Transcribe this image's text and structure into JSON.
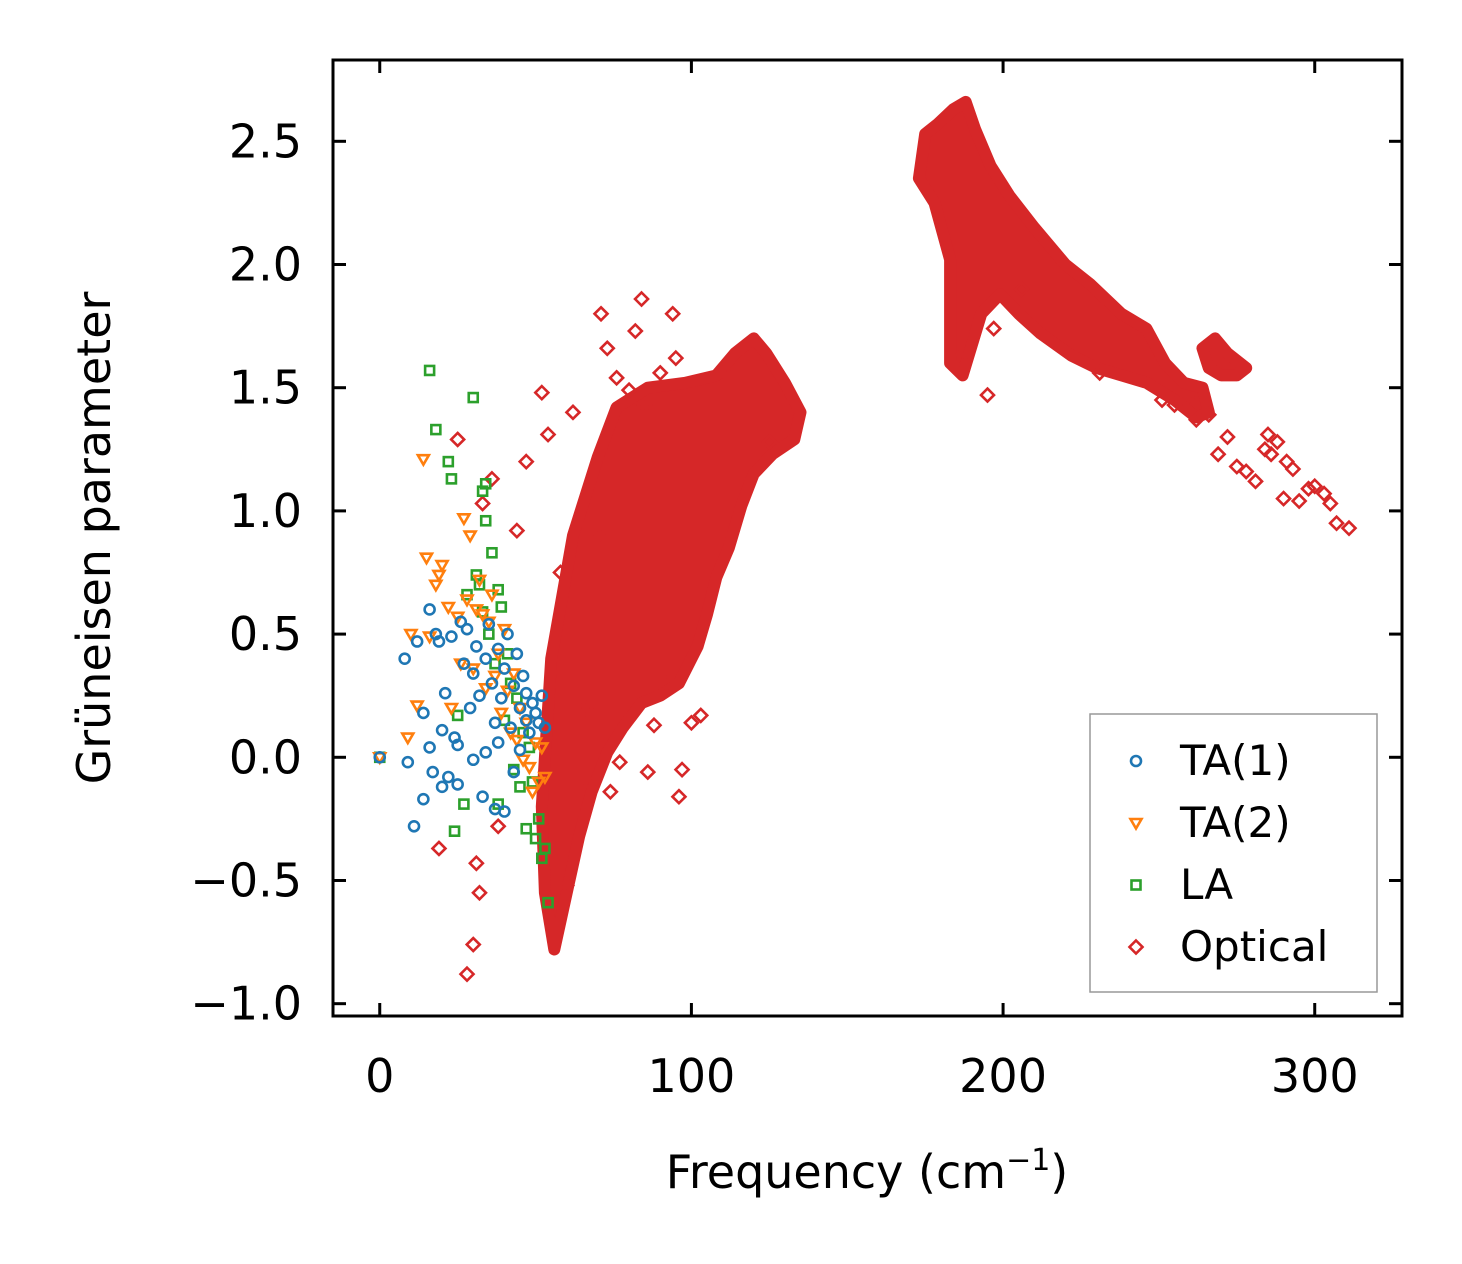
{
  "chart_data": {
    "type": "scatter",
    "xlabel": "Frequency (cm",
    "xlabel_sup": "−1",
    "xlabel_close": ")",
    "ylabel": "Grüneisen parameter",
    "xlim": [
      -15,
      328
    ],
    "ylim": [
      -1.05,
      2.83
    ],
    "xticks": [
      0,
      100,
      200,
      300
    ],
    "xtick_labels": [
      "0",
      "100",
      "200",
      "300"
    ],
    "yticks": [
      -1.0,
      -0.5,
      0.0,
      0.5,
      1.0,
      1.5,
      2.0,
      2.5
    ],
    "ytick_labels": [
      "−1.0",
      "−0.5",
      "0.0",
      "0.5",
      "1.0",
      "1.5",
      "2.0",
      "2.5"
    ],
    "legend_position": "lower-right",
    "series": [
      {
        "name": "TA(1)",
        "marker": "circle",
        "color": "#1f77b4",
        "points": [
          [
            0,
            0.0
          ],
          [
            8,
            0.4
          ],
          [
            9,
            -0.02
          ],
          [
            11,
            -0.28
          ],
          [
            12,
            0.47
          ],
          [
            14,
            0.18
          ],
          [
            14,
            -0.17
          ],
          [
            16,
            0.6
          ],
          [
            16,
            0.04
          ],
          [
            17,
            -0.06
          ],
          [
            18,
            0.5
          ],
          [
            19,
            0.47
          ],
          [
            20,
            0.11
          ],
          [
            20,
            -0.12
          ],
          [
            21,
            0.26
          ],
          [
            22,
            -0.08
          ],
          [
            23,
            0.49
          ],
          [
            24,
            0.08
          ],
          [
            25,
            0.05
          ],
          [
            25,
            -0.11
          ],
          [
            26,
            0.55
          ],
          [
            27,
            0.38
          ],
          [
            28,
            0.52
          ],
          [
            29,
            0.2
          ],
          [
            30,
            0.34
          ],
          [
            30,
            -0.01
          ],
          [
            31,
            0.45
          ],
          [
            32,
            0.25
          ],
          [
            33,
            -0.16
          ],
          [
            34,
            0.4
          ],
          [
            34,
            0.02
          ],
          [
            35,
            0.54
          ],
          [
            36,
            0.3
          ],
          [
            37,
            0.14
          ],
          [
            37,
            -0.21
          ],
          [
            38,
            0.44
          ],
          [
            38,
            0.06
          ],
          [
            39,
            0.24
          ],
          [
            40,
            0.36
          ],
          [
            40,
            -0.22
          ],
          [
            41,
            0.5
          ],
          [
            42,
            0.12
          ],
          [
            43,
            0.29
          ],
          [
            43,
            -0.06
          ],
          [
            44,
            0.42
          ],
          [
            45,
            0.2
          ],
          [
            45,
            0.03
          ],
          [
            46,
            0.33
          ],
          [
            47,
            0.15
          ],
          [
            47,
            0.26
          ],
          [
            48,
            0.1
          ],
          [
            49,
            0.22
          ],
          [
            50,
            0.18
          ],
          [
            51,
            0.14
          ],
          [
            52,
            0.25
          ],
          [
            53,
            0.12
          ]
        ]
      },
      {
        "name": "TA(2)",
        "marker": "triangle-down",
        "color": "#ff7f0e",
        "points": [
          [
            0,
            0.0
          ],
          [
            9,
            0.08
          ],
          [
            10,
            0.5
          ],
          [
            12,
            0.21
          ],
          [
            14,
            1.21
          ],
          [
            15,
            0.81
          ],
          [
            16,
            0.49
          ],
          [
            18,
            0.7
          ],
          [
            19,
            0.74
          ],
          [
            20,
            0.78
          ],
          [
            22,
            0.61
          ],
          [
            23,
            0.2
          ],
          [
            25,
            0.57
          ],
          [
            26,
            0.38
          ],
          [
            27,
            0.97
          ],
          [
            28,
            0.64
          ],
          [
            29,
            0.9
          ],
          [
            30,
            0.36
          ],
          [
            31,
            0.6
          ],
          [
            32,
            0.72
          ],
          [
            33,
            0.58
          ],
          [
            34,
            0.28
          ],
          [
            35,
            0.55
          ],
          [
            36,
            0.66
          ],
          [
            37,
            0.33
          ],
          [
            38,
            0.42
          ],
          [
            39,
            0.18
          ],
          [
            40,
            0.52
          ],
          [
            41,
            0.27
          ],
          [
            42,
            0.1
          ],
          [
            43,
            0.34
          ],
          [
            44,
            0.07
          ],
          [
            45,
            0.2
          ],
          [
            46,
            -0.01
          ],
          [
            47,
            0.14
          ],
          [
            48,
            -0.04
          ],
          [
            49,
            -0.14
          ],
          [
            50,
            0.06
          ],
          [
            51,
            -0.1
          ],
          [
            52,
            0.04
          ],
          [
            53,
            -0.08
          ]
        ]
      },
      {
        "name": "LA",
        "marker": "square",
        "color": "#2ca02c",
        "points": [
          [
            0,
            0.0
          ],
          [
            16,
            1.57
          ],
          [
            18,
            1.33
          ],
          [
            22,
            1.2
          ],
          [
            23,
            1.13
          ],
          [
            24,
            -0.3
          ],
          [
            25,
            0.17
          ],
          [
            27,
            -0.19
          ],
          [
            28,
            0.66
          ],
          [
            30,
            1.46
          ],
          [
            31,
            0.74
          ],
          [
            32,
            0.7
          ],
          [
            33,
            0.59
          ],
          [
            33,
            1.08
          ],
          [
            34,
            0.96
          ],
          [
            34,
            1.11
          ],
          [
            35,
            0.5
          ],
          [
            36,
            0.83
          ],
          [
            37,
            0.38
          ],
          [
            38,
            0.68
          ],
          [
            38,
            -0.19
          ],
          [
            39,
            0.61
          ],
          [
            40,
            0.15
          ],
          [
            41,
            0.42
          ],
          [
            42,
            0.3
          ],
          [
            43,
            -0.05
          ],
          [
            44,
            0.24
          ],
          [
            45,
            -0.12
          ],
          [
            46,
            0.1
          ],
          [
            47,
            -0.29
          ],
          [
            48,
            0.04
          ],
          [
            49,
            -0.1
          ],
          [
            50,
            -0.33
          ],
          [
            51,
            -0.25
          ],
          [
            52,
            -0.41
          ],
          [
            53,
            -0.37
          ],
          [
            54,
            -0.59
          ]
        ]
      },
      {
        "name": "Optical",
        "marker": "diamond",
        "color": "#d62728",
        "outliers": [
          [
            19,
            -0.37
          ],
          [
            25,
            1.29
          ],
          [
            28,
            -0.88
          ],
          [
            30,
            -0.76
          ],
          [
            31,
            -0.43
          ],
          [
            32,
            -0.55
          ],
          [
            33,
            1.03
          ],
          [
            36,
            1.13
          ],
          [
            38,
            -0.28
          ],
          [
            44,
            0.92
          ],
          [
            47,
            1.2
          ],
          [
            52,
            1.48
          ],
          [
            54,
            1.31
          ],
          [
            58,
            0.75
          ],
          [
            60,
            -0.52
          ],
          [
            62,
            1.4
          ],
          [
            66,
            0.2
          ],
          [
            68,
            -0.11
          ],
          [
            70,
            0.9
          ],
          [
            71,
            1.8
          ],
          [
            73,
            1.66
          ],
          [
            74,
            -0.14
          ],
          [
            76,
            1.54
          ],
          [
            77,
            -0.02
          ],
          [
            80,
            1.49
          ],
          [
            82,
            1.73
          ],
          [
            84,
            1.86
          ],
          [
            85,
            1.43
          ],
          [
            86,
            -0.06
          ],
          [
            88,
            0.13
          ],
          [
            90,
            1.56
          ],
          [
            92,
            0.3
          ],
          [
            94,
            1.8
          ],
          [
            95,
            1.62
          ],
          [
            96,
            -0.16
          ],
          [
            97,
            -0.05
          ],
          [
            100,
            0.14
          ],
          [
            103,
            0.17
          ],
          [
            110,
            1.57
          ],
          [
            125,
            1.28
          ],
          [
            186,
            1.62
          ],
          [
            195,
            1.47
          ],
          [
            197,
            1.74
          ],
          [
            206,
            1.9
          ],
          [
            231,
            1.56
          ],
          [
            251,
            1.45
          ],
          [
            255,
            1.43
          ],
          [
            259,
            1.46
          ],
          [
            262,
            1.37
          ],
          [
            266,
            1.39
          ],
          [
            269,
            1.23
          ],
          [
            272,
            1.3
          ],
          [
            275,
            1.18
          ],
          [
            278,
            1.16
          ],
          [
            281,
            1.12
          ],
          [
            284,
            1.25
          ],
          [
            285,
            1.31
          ],
          [
            286,
            1.23
          ],
          [
            288,
            1.28
          ],
          [
            290,
            1.05
          ],
          [
            291,
            1.2
          ],
          [
            293,
            1.17
          ],
          [
            295,
            1.04
          ],
          [
            298,
            1.09
          ],
          [
            300,
            1.1
          ],
          [
            303,
            1.07
          ],
          [
            305,
            1.03
          ],
          [
            307,
            0.95
          ],
          [
            311,
            0.93
          ]
        ],
        "dense_regions": [
          {
            "polygon": [
              [
                52,
                -0.2
              ],
              [
                55,
                0.4
              ],
              [
                62,
                0.9
              ],
              [
                70,
                1.22
              ],
              [
                76,
                1.42
              ],
              [
                86,
                1.5
              ],
              [
                98,
                1.52
              ],
              [
                108,
                1.55
              ],
              [
                114,
                1.64
              ],
              [
                120,
                1.7
              ],
              [
                124,
                1.64
              ],
              [
                130,
                1.52
              ],
              [
                135,
                1.4
              ],
              [
                133,
                1.29
              ],
              [
                126,
                1.23
              ],
              [
                120,
                1.15
              ],
              [
                116,
                1.02
              ],
              [
                112,
                0.85
              ],
              [
                108,
                0.73
              ],
              [
                105,
                0.58
              ],
              [
                102,
                0.45
              ],
              [
                96,
                0.3
              ],
              [
                90,
                0.25
              ],
              [
                84,
                0.22
              ],
              [
                78,
                0.12
              ],
              [
                73,
                0.02
              ],
              [
                68,
                -0.14
              ],
              [
                64,
                -0.32
              ],
              [
                60,
                -0.55
              ],
              [
                56,
                -0.78
              ],
              [
                53,
                -0.55
              ]
            ]
          },
          {
            "polygon": [
              [
                173,
                2.35
              ],
              [
                175,
                2.53
              ],
              [
                179,
                2.57
              ],
              [
                184,
                2.63
              ],
              [
                188,
                2.66
              ],
              [
                191,
                2.55
              ],
              [
                196,
                2.4
              ],
              [
                202,
                2.28
              ],
              [
                210,
                2.15
              ],
              [
                220,
                2.0
              ],
              [
                228,
                1.92
              ],
              [
                238,
                1.8
              ],
              [
                246,
                1.74
              ],
              [
                252,
                1.6
              ],
              [
                258,
                1.52
              ],
              [
                264,
                1.5
              ],
              [
                266,
                1.4
              ],
              [
                262,
                1.38
              ],
              [
                255,
                1.45
              ],
              [
                246,
                1.52
              ],
              [
                238,
                1.55
              ],
              [
                230,
                1.58
              ],
              [
                222,
                1.63
              ],
              [
                212,
                1.72
              ],
              [
                205,
                1.8
              ],
              [
                199,
                1.88
              ],
              [
                193,
                1.8
              ],
              [
                187,
                1.55
              ],
              [
                183,
                1.6
              ],
              [
                183,
                2.02
              ],
              [
                178,
                2.25
              ]
            ]
          },
          {
            "polygon": [
              [
                264,
                1.66
              ],
              [
                268,
                1.7
              ],
              [
                272,
                1.64
              ],
              [
                278,
                1.58
              ],
              [
                275,
                1.55
              ],
              [
                270,
                1.55
              ],
              [
                266,
                1.58
              ]
            ]
          }
        ]
      }
    ]
  }
}
